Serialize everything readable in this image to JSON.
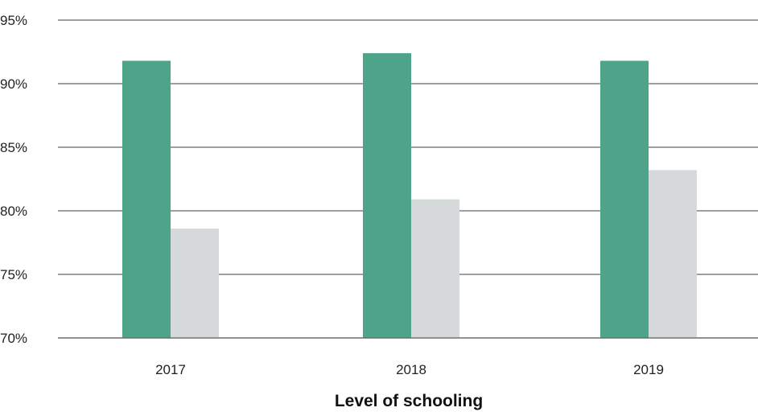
{
  "chart_data": {
    "type": "bar",
    "categories": [
      "2017",
      "2018",
      "2019"
    ],
    "series": [
      {
        "values": [
          91.8,
          92.4,
          91.8
        ],
        "color": "#4ea489"
      },
      {
        "values": [
          78.6,
          80.9,
          83.2
        ],
        "color": "#d6d9d9"
      }
    ],
    "xlabel": "Level of schooling",
    "ylabel": "",
    "ylim": [
      70,
      95
    ],
    "yticks": [
      70,
      75,
      80,
      85,
      90,
      95
    ],
    "ytick_format": "%",
    "grid": true,
    "legend": "none"
  }
}
